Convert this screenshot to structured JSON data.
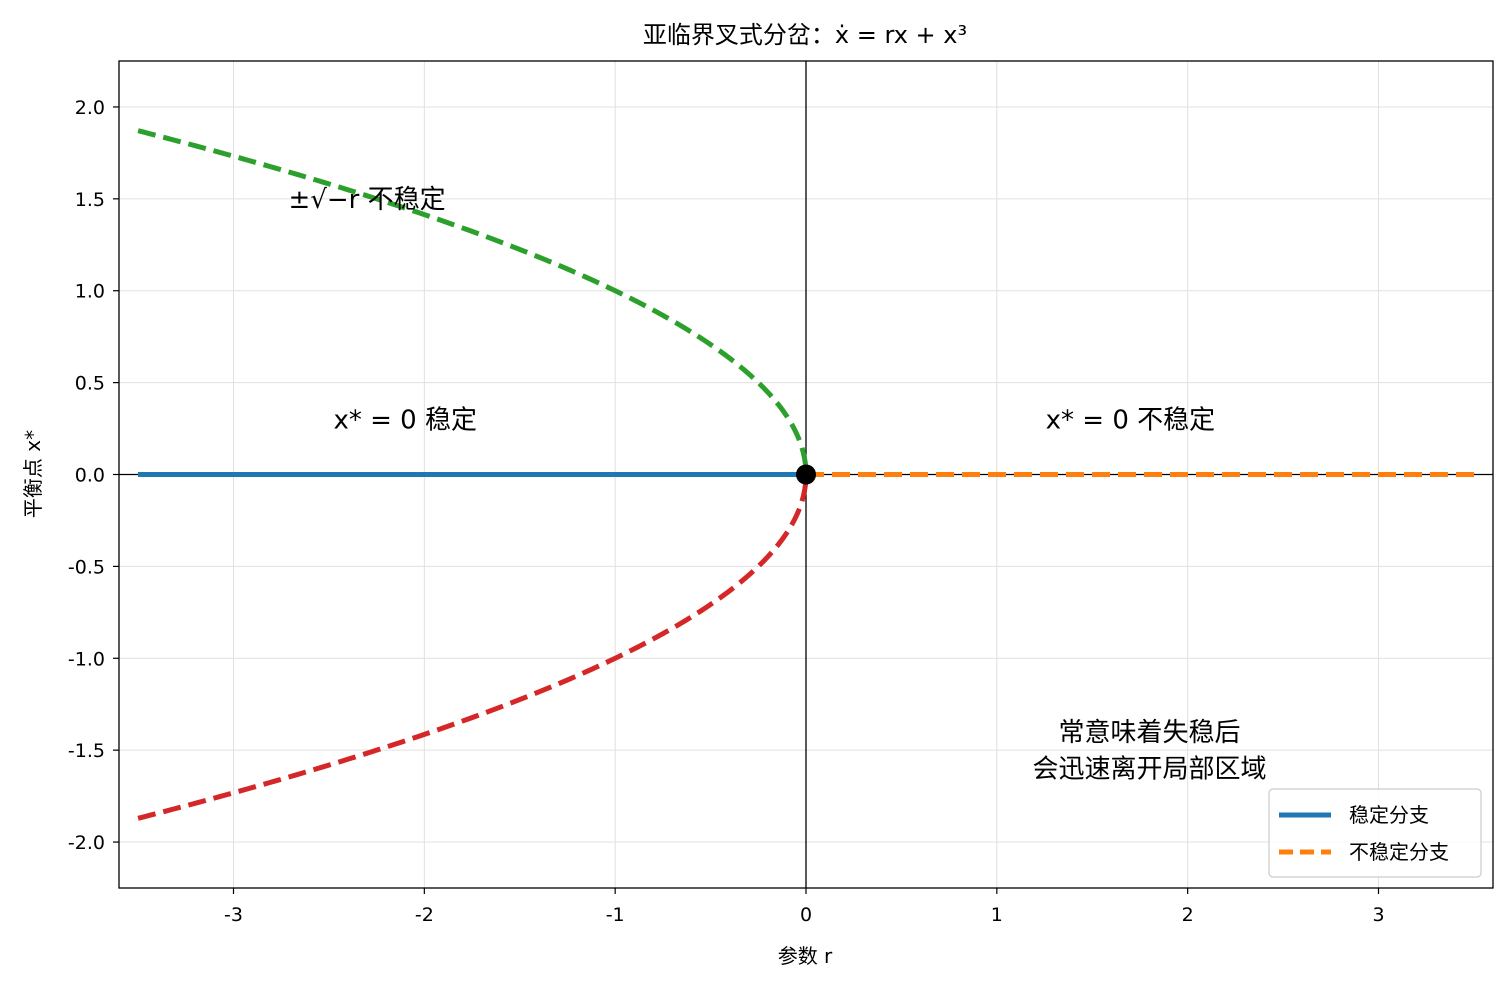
{
  "chart_data": {
    "type": "line",
    "title": "亚临界叉式分岔：ẋ = rx + x³",
    "xlabel": "参数 r",
    "ylabel": "平衡点 x*",
    "xlim": [
      -3.6,
      3.6
    ],
    "ylim": [
      -2.25,
      2.25
    ],
    "x_ticks": [
      -3,
      -2,
      -1,
      0,
      1,
      2,
      3
    ],
    "x_tick_labels": [
      "-3",
      "-2",
      "-1",
      "0",
      "1",
      "2",
      "3"
    ],
    "y_ticks": [
      2.0,
      1.5,
      1.0,
      0.5,
      0.0,
      -0.5,
      -1.0,
      -1.5,
      -2.0
    ],
    "y_tick_labels": [
      "2.0",
      "1.5",
      "1.0",
      "0.5",
      "0.0",
      "-0.5",
      "-1.0",
      "-1.5",
      "-2.0"
    ],
    "grid": true,
    "legend_position": "bottom-right",
    "series": [
      {
        "name": "稳定分支",
        "style": "solid",
        "color": "#1f77b4",
        "x": [
          -3.5,
          0
        ],
        "y": [
          0,
          0
        ]
      },
      {
        "name": "不稳定分支",
        "style": "dashed",
        "color": "#ff7f0e",
        "x": [
          0,
          3.5
        ],
        "y": [
          0,
          0
        ]
      },
      {
        "style": "dashed",
        "color": "#2ca02c",
        "x": [
          -3.5,
          -3.0,
          -2.5,
          -2.0,
          -1.5,
          -1.0,
          -0.5,
          -0.2,
          -0.05,
          0
        ],
        "y": [
          1.871,
          1.732,
          1.581,
          1.414,
          1.225,
          1.0,
          0.707,
          0.447,
          0.224,
          0
        ]
      },
      {
        "style": "dashed",
        "color": "#d62728",
        "x": [
          -3.5,
          -3.0,
          -2.5,
          -2.0,
          -1.5,
          -1.0,
          -0.5,
          -0.2,
          -0.05,
          0
        ],
        "y": [
          -1.871,
          -1.732,
          -1.581,
          -1.414,
          -1.225,
          -1.0,
          -0.707,
          -0.447,
          -0.224,
          0
        ]
      }
    ],
    "bifurcation_point": {
      "x": 0,
      "y": 0,
      "color": "#000000"
    },
    "annotations": [
      {
        "text": "±√−r 不稳定",
        "x": -2.3,
        "y": 1.5
      },
      {
        "text": "x* = 0 稳定",
        "x": -2.1,
        "y": 0.3
      },
      {
        "text": "x* = 0 不稳定",
        "x": 1.7,
        "y": 0.3
      },
      {
        "text": "常意味着失稳后",
        "x": 1.8,
        "y": -1.4
      },
      {
        "text": "会迅速离开局部区域",
        "x": 1.8,
        "y": -1.6
      }
    ]
  }
}
